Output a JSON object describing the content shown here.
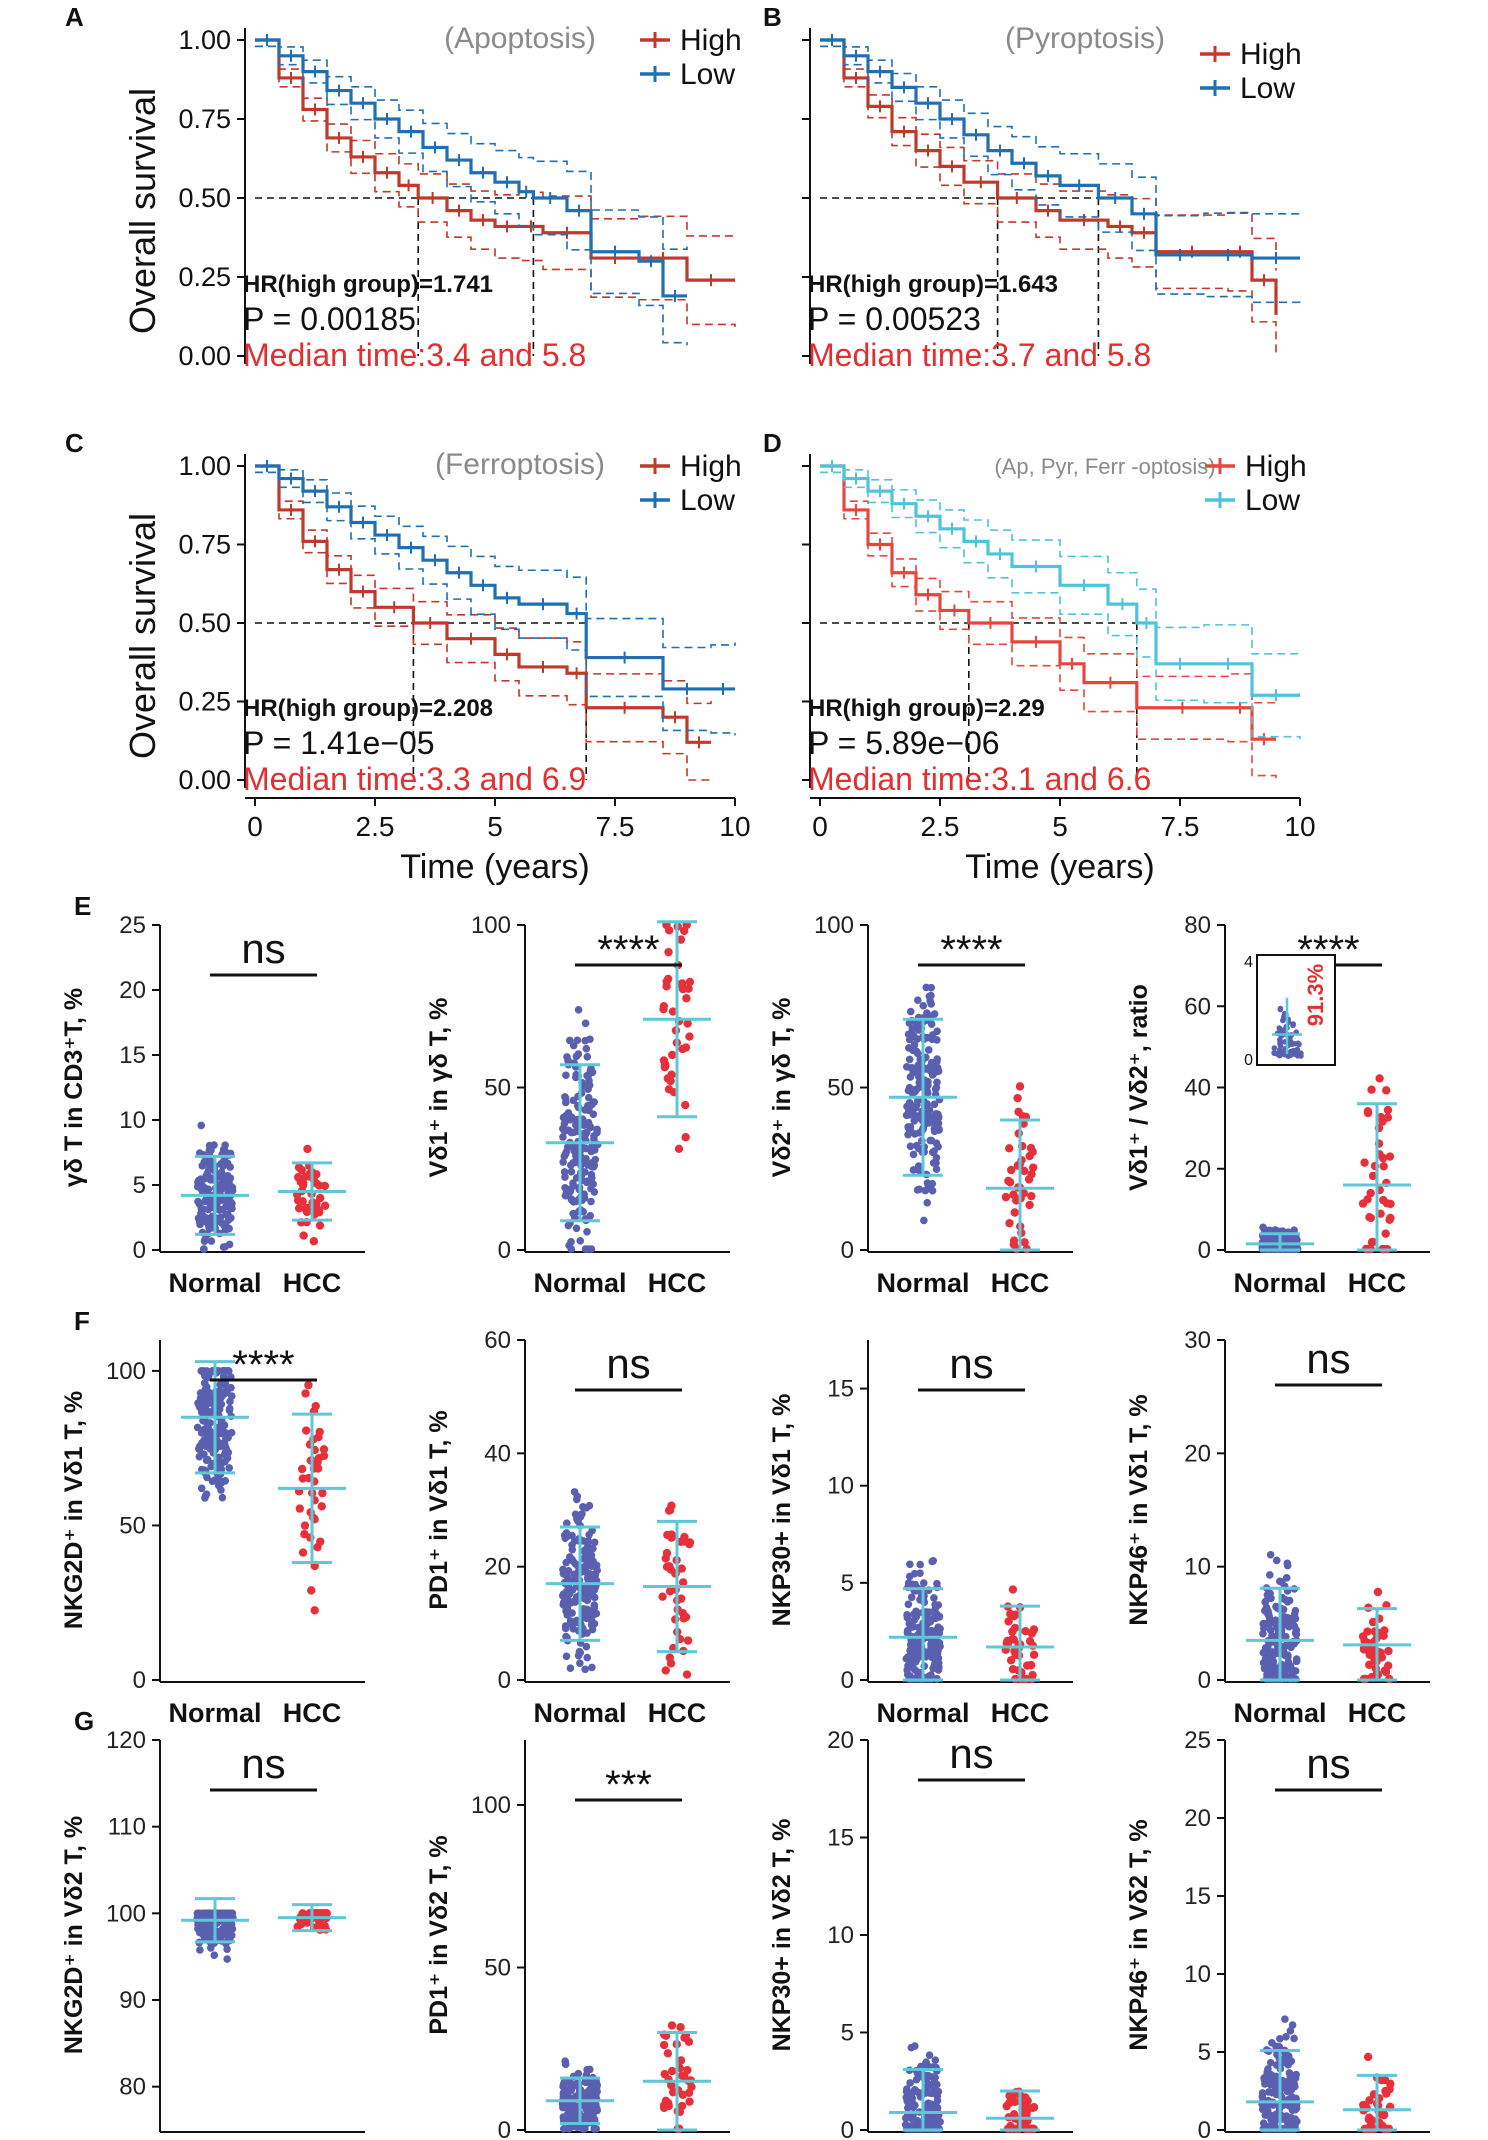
{
  "colors": {
    "high": "#c0392b",
    "high_d": "#e8453c",
    "low": "#1f6fb5",
    "low_d": "#4fc3dc",
    "sig": "#e03030",
    "dots_normal": "#5a5fb0",
    "dots_hcc": "#e8303a",
    "whisker": "#5ec8d8",
    "annot_gray": "#8a8a8a"
  },
  "chart_data": [
    {
      "id": "A",
      "type": "line",
      "panel_label": "A",
      "title": "(Apoptosis)",
      "ylabel": "Overall survival",
      "xlabel": "",
      "ylim": [
        0,
        1
      ],
      "xlim": [
        0,
        10
      ],
      "yticks": [
        "0.00",
        "0.25",
        "0.50",
        "0.75",
        "1.00"
      ],
      "xticks": [],
      "legend": [
        "High",
        "Low"
      ],
      "hr_text": "HR(high group)=1.741",
      "p_text": "P = 0.00185",
      "median_text": "Median time:3.4 and 5.8",
      "medians": [
        3.4,
        5.8
      ],
      "series": [
        {
          "name": "High",
          "x": [
            0,
            0.5,
            1.0,
            1.5,
            2.0,
            2.5,
            3.0,
            3.4,
            4.0,
            4.5,
            5.0,
            5.5,
            6.0,
            7.0,
            8.0,
            9.0,
            10.0
          ],
          "y": [
            1.0,
            0.88,
            0.78,
            0.69,
            0.63,
            0.58,
            0.54,
            0.5,
            0.46,
            0.43,
            0.41,
            0.41,
            0.39,
            0.31,
            0.31,
            0.24,
            0.24
          ]
        },
        {
          "name": "Low",
          "x": [
            0,
            0.5,
            1.0,
            1.5,
            2.0,
            2.5,
            3.0,
            3.5,
            4.0,
            4.5,
            5.0,
            5.5,
            5.8,
            6.5,
            7.0,
            8.0,
            8.5,
            9.0
          ],
          "y": [
            1.0,
            0.95,
            0.9,
            0.84,
            0.8,
            0.75,
            0.71,
            0.66,
            0.62,
            0.58,
            0.55,
            0.52,
            0.5,
            0.46,
            0.33,
            0.3,
            0.19,
            0.19
          ]
        }
      ]
    },
    {
      "id": "B",
      "type": "line",
      "panel_label": "B",
      "title": "(Pyroptosis)",
      "ylabel": "",
      "xlabel": "",
      "ylim": [
        0,
        1
      ],
      "xlim": [
        0,
        10
      ],
      "yticks": [],
      "xticks": [],
      "legend": [
        "High",
        "Low"
      ],
      "hr_text": "HR(high group)=1.643",
      "p_text": "P = 0.00523",
      "median_text": "Median time:3.7 and 5.8",
      "medians": [
        3.7,
        5.8
      ],
      "series": [
        {
          "name": "High",
          "x": [
            0,
            0.5,
            1.0,
            1.5,
            2.0,
            2.5,
            3.0,
            3.7,
            4.5,
            5.0,
            6.0,
            6.5,
            7.0,
            8.5,
            9.0,
            9.5
          ],
          "y": [
            1.0,
            0.88,
            0.79,
            0.71,
            0.65,
            0.6,
            0.55,
            0.5,
            0.46,
            0.43,
            0.41,
            0.39,
            0.33,
            0.33,
            0.24,
            0.13
          ]
        },
        {
          "name": "Low",
          "x": [
            0,
            0.5,
            1.0,
            1.5,
            2.0,
            2.5,
            3.0,
            3.5,
            4.0,
            4.5,
            5.0,
            5.8,
            6.5,
            7.0,
            8.0,
            9.0,
            10.0
          ],
          "y": [
            1.0,
            0.95,
            0.9,
            0.85,
            0.8,
            0.75,
            0.7,
            0.65,
            0.61,
            0.57,
            0.54,
            0.5,
            0.45,
            0.32,
            0.32,
            0.31,
            0.31
          ]
        }
      ]
    },
    {
      "id": "C",
      "type": "line",
      "panel_label": "C",
      "title": "(Ferroptosis)",
      "ylabel": "Overall survival",
      "xlabel": "Time (years)",
      "ylim": [
        0,
        1
      ],
      "xlim": [
        0,
        10
      ],
      "yticks": [
        "0.00",
        "0.25",
        "0.50",
        "0.75",
        "1.00"
      ],
      "xticks": [
        "0",
        "2.5",
        "5",
        "7.5",
        "10"
      ],
      "legend": [
        "High",
        "Low"
      ],
      "hr_text": "HR(high group)=2.208",
      "p_text": "P = 1.41e−05",
      "median_text": "Median time:3.3 and 6.9",
      "medians": [
        3.3,
        6.9
      ],
      "series": [
        {
          "name": "High",
          "x": [
            0,
            0.5,
            1.0,
            1.5,
            2.0,
            2.5,
            3.3,
            4.0,
            5.0,
            5.5,
            6.5,
            6.9,
            8.5,
            9.0,
            9.5
          ],
          "y": [
            1.0,
            0.86,
            0.76,
            0.67,
            0.6,
            0.55,
            0.5,
            0.45,
            0.4,
            0.36,
            0.34,
            0.23,
            0.2,
            0.12,
            0.12
          ]
        },
        {
          "name": "Low",
          "x": [
            0,
            0.5,
            1.0,
            1.5,
            2.0,
            2.5,
            3.0,
            3.5,
            4.0,
            4.5,
            5.0,
            5.5,
            6.5,
            6.9,
            8.5,
            9.5,
            10.0
          ],
          "y": [
            1.0,
            0.96,
            0.92,
            0.87,
            0.82,
            0.78,
            0.74,
            0.7,
            0.66,
            0.62,
            0.58,
            0.56,
            0.53,
            0.39,
            0.29,
            0.29,
            0.29
          ]
        }
      ]
    },
    {
      "id": "D",
      "type": "line",
      "panel_label": "D",
      "title": "(Ap, Pyr, Ferr -optosis)",
      "ylabel": "",
      "xlabel": "Time (years)",
      "ylim": [
        0,
        1
      ],
      "xlim": [
        0,
        10
      ],
      "yticks": [],
      "xticks": [
        "0",
        "2.5",
        "5",
        "7.5",
        "10"
      ],
      "legend": [
        "High",
        "Low"
      ],
      "hr_text": "HR(high group)=2.29",
      "p_text": "P = 5.89e−06",
      "median_text": "Median time:3.1 and 6.6",
      "medians": [
        3.1,
        6.6
      ],
      "series": [
        {
          "name": "High",
          "x": [
            0,
            0.5,
            1.0,
            1.5,
            2.0,
            2.5,
            3.1,
            4.0,
            5.0,
            5.5,
            6.6,
            8.5,
            9.0,
            9.5
          ],
          "y": [
            1.0,
            0.86,
            0.75,
            0.66,
            0.59,
            0.54,
            0.5,
            0.44,
            0.37,
            0.31,
            0.23,
            0.23,
            0.13,
            0.13
          ]
        },
        {
          "name": "Low",
          "x": [
            0,
            0.5,
            1.0,
            1.5,
            2.0,
            2.5,
            3.0,
            3.5,
            4.0,
            5.0,
            6.0,
            6.6,
            7.0,
            8.0,
            9.0,
            10.0
          ],
          "y": [
            1.0,
            0.96,
            0.92,
            0.88,
            0.84,
            0.8,
            0.76,
            0.72,
            0.68,
            0.62,
            0.56,
            0.5,
            0.37,
            0.37,
            0.27,
            0.27
          ]
        }
      ]
    },
    {
      "id": "E1",
      "type": "scatter",
      "panel_label": "E",
      "ylabel": "γδ T in CD3⁺T, %",
      "ylim": [
        0,
        25
      ],
      "yticks": [
        "0",
        "5",
        "10",
        "15",
        "20",
        "25"
      ],
      "categories": [
        "Normal",
        "HCC"
      ],
      "mean": [
        4.2,
        4.5
      ],
      "sd": [
        3.0,
        2.2
      ],
      "n": [
        180,
        40
      ],
      "max": [
        20,
        10
      ],
      "sig": "ns"
    },
    {
      "id": "E2",
      "type": "scatter",
      "ylabel": "Vδ1⁺ in γδ T, %",
      "ylim": [
        0,
        100
      ],
      "yticks": [
        "0",
        "50",
        "100"
      ],
      "categories": [
        "Normal",
        "HCC"
      ],
      "mean": [
        33,
        71
      ],
      "sd": [
        24,
        30
      ],
      "n": [
        180,
        40
      ],
      "max": [
        90,
        100
      ],
      "sig": "****"
    },
    {
      "id": "E3",
      "type": "scatter",
      "ylabel": "Vδ2⁺ in γδ T, %",
      "ylim": [
        0,
        100
      ],
      "yticks": [
        "0",
        "50",
        "100"
      ],
      "categories": [
        "Normal",
        "HCC"
      ],
      "mean": [
        47,
        19
      ],
      "sd": [
        24,
        21
      ],
      "n": [
        180,
        40
      ],
      "max": [
        97,
        76
      ],
      "sig": "****"
    },
    {
      "id": "E4",
      "type": "scatter",
      "ylabel": "Vδ1⁺ / Vδ2⁺, ratio",
      "ylim": [
        0,
        80
      ],
      "yticks": [
        "0",
        "20",
        "40",
        "60",
        "80"
      ],
      "categories": [
        "Normal",
        "HCC"
      ],
      "mean": [
        1.5,
        16
      ],
      "sd": [
        2.5,
        20
      ],
      "n": [
        180,
        40
      ],
      "max": [
        20,
        70
      ],
      "sig": "****",
      "inset": {
        "ylim": [
          0,
          4
        ],
        "yticks": [
          "0",
          "4"
        ],
        "annotation": "91.3%"
      }
    },
    {
      "id": "F1",
      "type": "scatter",
      "panel_label": "F",
      "ylabel": "NKG2D⁺ in Vδ1 T, %",
      "ylim": [
        0,
        110
      ],
      "yticks": [
        "0",
        "50",
        "100"
      ],
      "categories": [
        "Normal",
        "HCC"
      ],
      "mean": [
        85,
        62
      ],
      "sd": [
        18,
        24
      ],
      "n": [
        180,
        40
      ],
      "max": [
        100,
        100
      ],
      "sig": "****"
    },
    {
      "id": "F2",
      "type": "scatter",
      "ylabel": "PD1⁺ in Vδ1 T, %",
      "ylim": [
        0,
        60
      ],
      "yticks": [
        "0",
        "20",
        "40",
        "60"
      ],
      "categories": [
        "Normal",
        "HCC"
      ],
      "mean": [
        17,
        16.5
      ],
      "sd": [
        10,
        11.5
      ],
      "n": [
        180,
        40
      ],
      "max": [
        47,
        40
      ],
      "sig": "ns"
    },
    {
      "id": "F3",
      "type": "scatter",
      "ylabel": "NKP30+ in Vδ1 T, %",
      "ylim": [
        0,
        17.5
      ],
      "yticks": [
        "0",
        "5",
        "10",
        "15"
      ],
      "categories": [
        "Normal",
        "HCC"
      ],
      "mean": [
        2.2,
        1.7
      ],
      "sd": [
        2.5,
        2.1
      ],
      "n": [
        180,
        40
      ],
      "max": [
        14.5,
        10.5
      ],
      "sig": "ns"
    },
    {
      "id": "F4",
      "type": "scatter",
      "ylabel": "NKP46⁺ in Vδ1 T, %",
      "ylim": [
        0,
        30
      ],
      "yticks": [
        "0",
        "10",
        "20",
        "30"
      ],
      "categories": [
        "Normal",
        "HCC"
      ],
      "mean": [
        3.5,
        3.1
      ],
      "sd": [
        4.6,
        3.2
      ],
      "n": [
        180,
        40
      ],
      "max": [
        25.5,
        18
      ],
      "sig": "ns"
    },
    {
      "id": "G1",
      "type": "scatter",
      "panel_label": "G",
      "ylabel": "NKG2D⁺ in Vδ2 T, %",
      "ylim": [
        75,
        120
      ],
      "yticks": [
        "80",
        "90",
        "100",
        "110",
        "120"
      ],
      "categories": [
        "Normal",
        "HCC"
      ],
      "mean": [
        99.2,
        99.5
      ],
      "sd": [
        2.5,
        1.5
      ],
      "n": [
        180,
        40
      ],
      "max": [
        100,
        100
      ],
      "sig": "ns"
    },
    {
      "id": "G2",
      "type": "scatter",
      "ylabel": "PD1⁺ in Vδ2 T, %",
      "ylim": [
        0,
        120
      ],
      "yticks": [
        "0",
        "50",
        "100"
      ],
      "categories": [
        "Normal",
        "HCC"
      ],
      "mean": [
        9,
        15
      ],
      "sd": [
        7,
        15
      ],
      "n": [
        180,
        40
      ],
      "max": [
        38,
        60
      ],
      "sig": "***"
    },
    {
      "id": "G3",
      "type": "scatter",
      "ylabel": "NKP30+ in Vδ2 T, %",
      "ylim": [
        0,
        20
      ],
      "yticks": [
        "0",
        "5",
        "10",
        "15",
        "20"
      ],
      "categories": [
        "Normal",
        "HCC"
      ],
      "mean": [
        0.9,
        0.6
      ],
      "sd": [
        2.2,
        1.4
      ],
      "n": [
        180,
        40
      ],
      "max": [
        18,
        7.8
      ],
      "sig": "ns"
    },
    {
      "id": "G4",
      "type": "scatter",
      "ylabel": "NKP46⁺ in Vδ2 T, %",
      "ylim": [
        0,
        25
      ],
      "yticks": [
        "0",
        "5",
        "10",
        "15",
        "20",
        "25"
      ],
      "categories": [
        "Normal",
        "HCC"
      ],
      "mean": [
        1.8,
        1.3
      ],
      "sd": [
        3.3,
        2.2
      ],
      "n": [
        180,
        40
      ],
      "max": [
        20,
        8.5
      ],
      "sig": "ns"
    }
  ]
}
